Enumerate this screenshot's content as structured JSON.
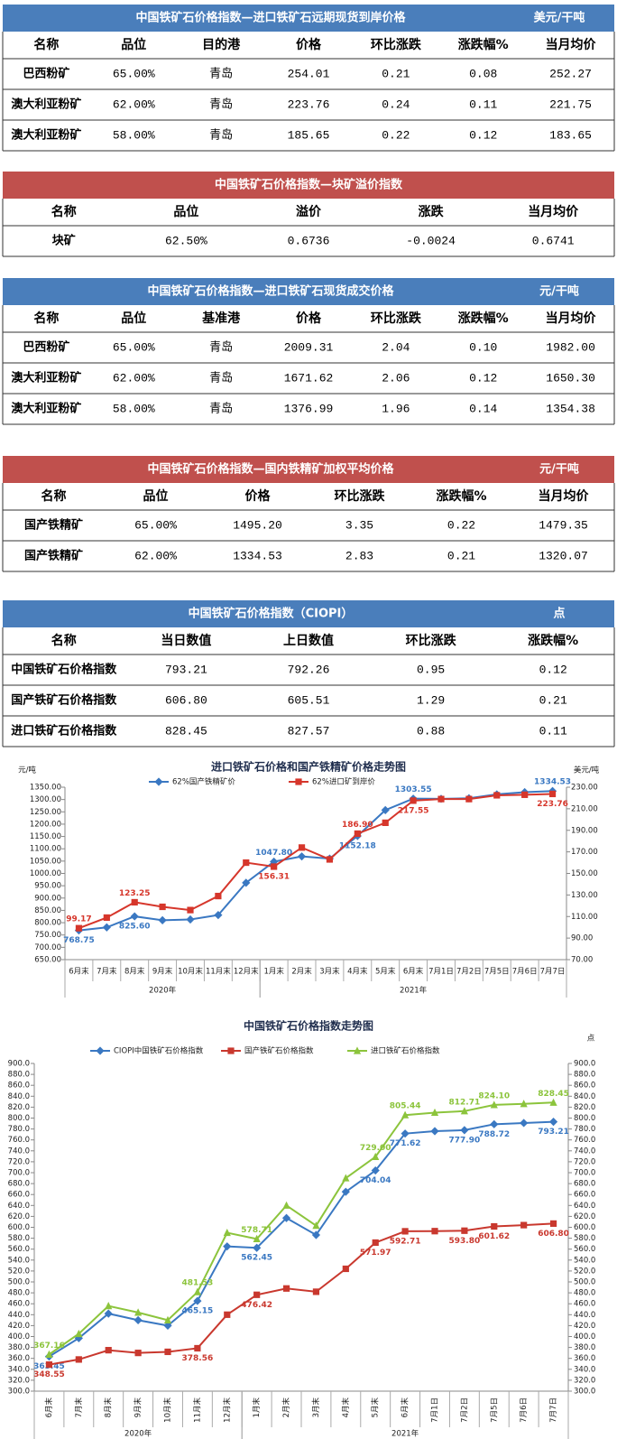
{
  "tables": [
    {
      "title": "中国铁矿石价格指数—进口铁矿石远期现货到岸价格",
      "unit": "美元/干吨",
      "header_color": "#4a7ebb",
      "columns": [
        "名称",
        "品位",
        "目的港",
        "价格",
        "环比涨跌",
        "涨跌幅%",
        "当月均价"
      ],
      "rows": [
        [
          "巴西粉矿",
          "65.00%",
          "青岛",
          "254.01",
          "0.21",
          "0.08",
          "252.27"
        ],
        [
          "澳大利亚粉矿",
          "62.00%",
          "青岛",
          "223.76",
          "0.24",
          "0.11",
          "221.75"
        ],
        [
          "澳大利亚粉矿",
          "58.00%",
          "青岛",
          "185.65",
          "0.22",
          "0.12",
          "183.65"
        ]
      ]
    },
    {
      "title": "中国铁矿石价格指数—块矿溢价指数",
      "header_color": "#c0504d",
      "columns": [
        "名称",
        "品位",
        "溢价",
        "涨跌",
        "当月均价"
      ],
      "rows": [
        [
          "块矿",
          "62.50%",
          "0.6736",
          "-0.0024",
          "0.6741"
        ]
      ]
    },
    {
      "title": "中国铁矿石价格指数—进口铁矿石现货成交价格",
      "unit": "元/干吨",
      "header_color": "#4a7ebb",
      "columns": [
        "名称",
        "品位",
        "基准港",
        "价格",
        "环比涨跌",
        "涨跌幅%",
        "当月均价"
      ],
      "rows": [
        [
          "巴西粉矿",
          "65.00%",
          "青岛",
          "2009.31",
          "2.04",
          "0.10",
          "1982.00"
        ],
        [
          "澳大利亚粉矿",
          "62.00%",
          "青岛",
          "1671.62",
          "2.06",
          "0.12",
          "1650.30"
        ],
        [
          "澳大利亚粉矿",
          "58.00%",
          "青岛",
          "1376.99",
          "1.96",
          "0.14",
          "1354.38"
        ]
      ]
    },
    {
      "title": "中国铁矿石价格指数—国内铁精矿加权平均价格",
      "unit": "元/干吨",
      "header_color": "#c0504d",
      "columns": [
        "名称",
        "品位",
        "价格",
        "环比涨跌",
        "涨跌幅%",
        "当月均价"
      ],
      "rows": [
        [
          "国产铁精矿",
          "65.00%",
          "1495.20",
          "3.35",
          "0.22",
          "1479.35"
        ],
        [
          "国产铁精矿",
          "62.00%",
          "1334.53",
          "2.83",
          "0.21",
          "1320.07"
        ]
      ]
    },
    {
      "title": "中国铁矿石价格指数（CIOPI）",
      "unit": "点",
      "header_color": "#4a7ebb",
      "columns": [
        "名称",
        "当日数值",
        "上日数值",
        "环比涨跌",
        "涨跌幅%"
      ],
      "rows": [
        [
          "中国铁矿石价格指数",
          "793.21",
          "792.26",
          "0.95",
          "0.12"
        ],
        [
          "国产铁矿石价格指数",
          "606.80",
          "605.51",
          "1.29",
          "0.21"
        ],
        [
          "进口铁矿石价格指数",
          "828.45",
          "827.57",
          "0.88",
          "0.11"
        ]
      ]
    }
  ],
  "chart_data": [
    {
      "type": "line",
      "title": "进口铁矿石价格和国产铁精矿价格走势图",
      "y_label": "元/吨",
      "y2_label": "美元/吨",
      "categories": [
        "6月末",
        "7月末",
        "8月末",
        "9月末",
        "10月末",
        "11月末",
        "12月末",
        "1月末",
        "2月末",
        "3月末",
        "4月末",
        "5月末",
        "6月末",
        "7月1日",
        "7月2日",
        "7月5日",
        "7月6日",
        "7月7日"
      ],
      "category_groups": [
        {
          "label": "2020年",
          "count": 7
        },
        {
          "label": "2021年",
          "count": 11
        }
      ],
      "series": [
        {
          "name": "62%国产铁精矿价",
          "color": "#3a78c2",
          "marker": "diamond",
          "values": [
            768.75,
            781,
            825.6,
            810,
            813,
            831,
            962,
            1047.8,
            1069,
            1060,
            1152.18,
            1257,
            1303.55,
            1303,
            1305,
            1321,
            1330,
            1334.53
          ],
          "value_labels": [
            "768.75",
            null,
            "825.60",
            null,
            null,
            null,
            null,
            "1047.80",
            null,
            null,
            "1152.18",
            null,
            "1303.55",
            null,
            null,
            null,
            null,
            "1334.53"
          ]
        },
        {
          "name": "62%进口矿到岸价",
          "color": "#d6362b",
          "marker": "square",
          "axis": "y2",
          "values": [
            99.17,
            109,
            123.25,
            119,
            116,
            129,
            160,
            156.31,
            174,
            163,
            186.9,
            197,
            217.55,
            219,
            219,
            222.5,
            223,
            223.76
          ],
          "value_labels": [
            "99.17",
            null,
            "123.25",
            null,
            null,
            null,
            null,
            "156.31",
            null,
            null,
            "186.90",
            null,
            "217.55",
            null,
            null,
            null,
            null,
            "223.76"
          ]
        }
      ],
      "ylim": [
        650,
        1350
      ],
      "yticks": [
        {
          "value": 650,
          "label": "650.00"
        },
        {
          "value": 700,
          "label": "700.00"
        },
        {
          "value": 750,
          "label": "750.00"
        },
        {
          "value": 800,
          "label": "800.00"
        },
        {
          "value": 850,
          "label": "850.00"
        },
        {
          "value": 900,
          "label": "900.00"
        },
        {
          "value": 950,
          "label": "950.00"
        },
        {
          "value": 1000,
          "label": "1000.00"
        },
        {
          "value": 1050,
          "label": "1050.00"
        },
        {
          "value": 1100,
          "label": "1100.00"
        },
        {
          "value": 1150,
          "label": "1150.00"
        },
        {
          "value": 1200,
          "label": "1200.00"
        },
        {
          "value": 1250,
          "label": "1250.00"
        },
        {
          "value": 1300,
          "label": "1300.00"
        },
        {
          "value": 1350,
          "label": "1350.00"
        }
      ],
      "y2lim": [
        70,
        230
      ],
      "y2ticks": [
        {
          "value": 70,
          "label": "70.00"
        },
        {
          "value": 90,
          "label": "90.00"
        },
        {
          "value": 110,
          "label": "110.00"
        },
        {
          "value": 130,
          "label": "130.00"
        },
        {
          "value": 150,
          "label": "150.00"
        },
        {
          "value": 170,
          "label": "170.00"
        },
        {
          "value": 190,
          "label": "190.00"
        },
        {
          "value": 210,
          "label": "210.00"
        },
        {
          "value": 230,
          "label": "230.00"
        }
      ],
      "grid": false
    },
    {
      "type": "line",
      "title": "中国铁矿石价格指数走势图",
      "y2_label": "点",
      "categories": [
        "6月末",
        "7月末",
        "8月末",
        "9月末",
        "10月末",
        "11月末",
        "12月末",
        "1月末",
        "2月末",
        "3月末",
        "4月末",
        "5月末",
        "6月末",
        "7月1日",
        "7月2日",
        "7月5日",
        "7月6日",
        "7月7日"
      ],
      "category_groups": [
        {
          "label": "2020年",
          "count": 7
        },
        {
          "label": "2021年",
          "count": 11
        }
      ],
      "series": [
        {
          "name": "CIOPI中国铁矿石价格指数",
          "color": "#3a78c2",
          "marker": "diamond",
          "values": [
            363.45,
            397,
            442,
            430,
            420,
            465.15,
            565,
            562.45,
            617,
            586,
            665,
            704.04,
            771.62,
            776,
            777.9,
            788.72,
            791,
            793.21
          ],
          "value_labels": [
            "363.45",
            null,
            null,
            null,
            null,
            "465.15",
            null,
            "562.45",
            null,
            null,
            null,
            "704.04",
            "771.62",
            null,
            "777.90",
            "788.72",
            null,
            "793.21"
          ]
        },
        {
          "name": "国产铁矿石价格指数",
          "color": "#c9382e",
          "marker": "square",
          "values": [
            348.55,
            358,
            375,
            370,
            372,
            378.56,
            440,
            476.42,
            488,
            482,
            524,
            571.97,
            592.71,
            593,
            593.8,
            601.62,
            604,
            606.8
          ],
          "value_labels": [
            "348.55",
            null,
            null,
            null,
            null,
            "378.56",
            null,
            "476.42",
            null,
            null,
            null,
            "571.97",
            "592.71",
            null,
            "593.80",
            "601.62",
            null,
            "606.80"
          ]
        },
        {
          "name": "进口铁矿石价格指数",
          "color": "#8cc43c",
          "marker": "triangle",
          "values": [
            367.16,
            405,
            456,
            444,
            430,
            481.53,
            590,
            578.71,
            640,
            603,
            690,
            729,
            805.44,
            810,
            812.71,
            824.1,
            826,
            828.45
          ],
          "value_labels": [
            "367.16",
            null,
            null,
            null,
            null,
            "481.53",
            null,
            "578.71",
            null,
            null,
            null,
            "729.00",
            "805.44",
            null,
            "812.71",
            "824.10",
            null,
            "828.45"
          ]
        }
      ],
      "ylim": [
        300,
        900
      ],
      "yticks": [
        {
          "value": 300,
          "label": "300.0"
        },
        {
          "value": 320,
          "label": "320.0"
        },
        {
          "value": 340,
          "label": "340.0"
        },
        {
          "value": 360,
          "label": "360.0"
        },
        {
          "value": 380,
          "label": "380.0"
        },
        {
          "value": 400,
          "label": "400.0"
        },
        {
          "value": 420,
          "label": "420.0"
        },
        {
          "value": 440,
          "label": "440.0"
        },
        {
          "value": 460,
          "label": "460.0"
        },
        {
          "value": 480,
          "label": "480.0"
        },
        {
          "value": 500,
          "label": "500.0"
        },
        {
          "value": 520,
          "label": "520.0"
        },
        {
          "value": 540,
          "label": "540.0"
        },
        {
          "value": 560,
          "label": "560.0"
        },
        {
          "value": 580,
          "label": "580.0"
        },
        {
          "value": 600,
          "label": "600.0"
        },
        {
          "value": 620,
          "label": "620.0"
        },
        {
          "value": 640,
          "label": "640.0"
        },
        {
          "value": 660,
          "label": "660.0"
        },
        {
          "value": 680,
          "label": "680.0"
        },
        {
          "value": 700,
          "label": "700.0"
        },
        {
          "value": 720,
          "label": "720.0"
        },
        {
          "value": 740,
          "label": "740.0"
        },
        {
          "value": 760,
          "label": "760.0"
        },
        {
          "value": 780,
          "label": "780.0"
        },
        {
          "value": 800,
          "label": "800.0"
        },
        {
          "value": 820,
          "label": "820.0"
        },
        {
          "value": 840,
          "label": "840.0"
        },
        {
          "value": 860,
          "label": "860.0"
        },
        {
          "value": 880,
          "label": "880.0"
        },
        {
          "value": 900,
          "label": "900.0"
        }
      ],
      "y2lim": [
        300,
        900
      ],
      "y2ticks": [
        {
          "value": 300,
          "label": "300.0"
        },
        {
          "value": 320,
          "label": "320.0"
        },
        {
          "value": 340,
          "label": "340.0"
        },
        {
          "value": 360,
          "label": "360.0"
        },
        {
          "value": 380,
          "label": "380.0"
        },
        {
          "value": 400,
          "label": "400.0"
        },
        {
          "value": 420,
          "label": "420.0"
        },
        {
          "value": 440,
          "label": "440.0"
        },
        {
          "value": 460,
          "label": "460.0"
        },
        {
          "value": 480,
          "label": "480.0"
        },
        {
          "value": 500,
          "label": "500.0"
        },
        {
          "value": 520,
          "label": "520.0"
        },
        {
          "value": 540,
          "label": "540.0"
        },
        {
          "value": 560,
          "label": "560.0"
        },
        {
          "value": 580,
          "label": "580.0"
        },
        {
          "value": 600,
          "label": "600.0"
        },
        {
          "value": 620,
          "label": "620.0"
        },
        {
          "value": 640,
          "label": "640.0"
        },
        {
          "value": 660,
          "label": "660.0"
        },
        {
          "value": 680,
          "label": "680.0"
        },
        {
          "value": 700,
          "label": "700.0"
        },
        {
          "value": 720,
          "label": "720.0"
        },
        {
          "value": 740,
          "label": "740.0"
        },
        {
          "value": 760,
          "label": "760.0"
        },
        {
          "value": 780,
          "label": "780.0"
        },
        {
          "value": 800,
          "label": "800.0"
        },
        {
          "value": 820,
          "label": "820.0"
        },
        {
          "value": 840,
          "label": "840.0"
        },
        {
          "value": 860,
          "label": "860.0"
        },
        {
          "value": 880,
          "label": "880.0"
        },
        {
          "value": 900,
          "label": "900.0"
        }
      ],
      "grid": false
    }
  ]
}
